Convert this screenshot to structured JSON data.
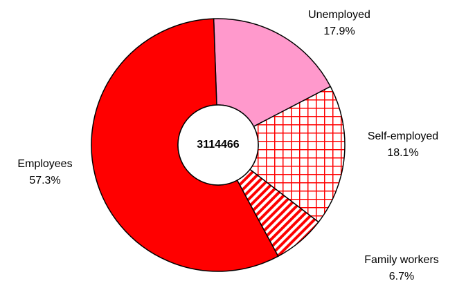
{
  "chart_data": {
    "type": "donut",
    "center_label": 3114466,
    "categories": [
      "Unemployed",
      "Self-employed",
      "Family workers",
      "Employees"
    ],
    "values": [
      17.9,
      18.1,
      6.7,
      57.3
    ],
    "value_labels": [
      "17.9%",
      "18.1%",
      "6.7%",
      "57.3%"
    ],
    "colors": [
      "#ff99cc",
      "#ff0000",
      "#ff0000",
      "#ff0000"
    ],
    "fill_styles": [
      "solid",
      "grid",
      "stripes",
      "solid"
    ]
  }
}
